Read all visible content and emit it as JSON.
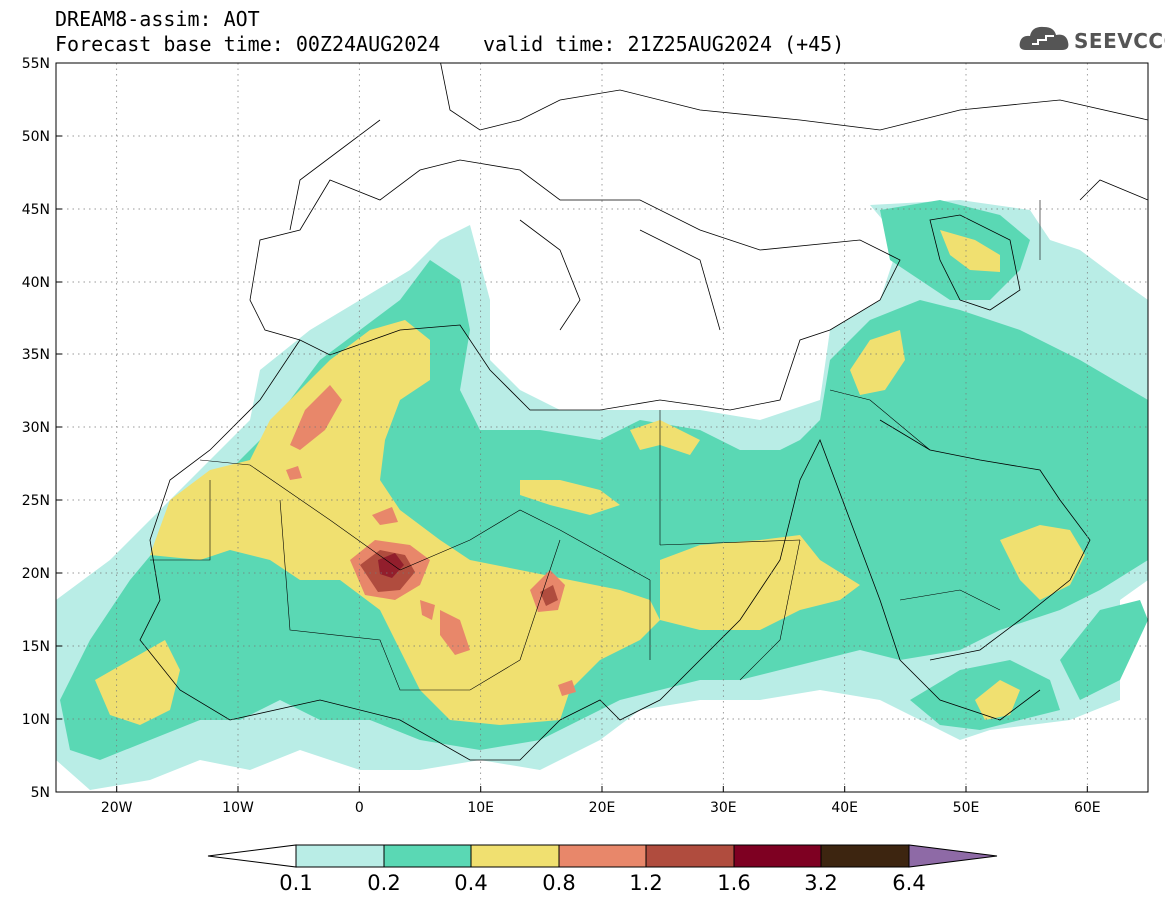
{
  "header": {
    "title": "DREAM8-assim: AOT",
    "base_time": "Forecast base time: 00Z24AUG2024",
    "valid_time": "valid time: 21Z25AUG2024 (+45)"
  },
  "logo": {
    "text": "SEEVCCC",
    "icon": "cloud-icon"
  },
  "map": {
    "lat_labels": [
      "55N",
      "50N",
      "45N",
      "40N",
      "35N",
      "30N",
      "25N",
      "20N",
      "15N",
      "10N",
      "5N"
    ],
    "lon_labels": [
      "20W",
      "10W",
      "0",
      "10E",
      "20E",
      "30E",
      "40E",
      "50E",
      "60E"
    ],
    "lon_range": [
      -25,
      65
    ],
    "lat_range": [
      5,
      55
    ],
    "projection": "equirectangular",
    "grid": "dotted"
  },
  "colorbar": {
    "labels": [
      "0.1",
      "0.2",
      "0.4",
      "0.8",
      "1.2",
      "1.6",
      "3.2",
      "6.4"
    ],
    "colors": [
      "#b9ede6",
      "#5ad8b4",
      "#f0e070",
      "#e8876a",
      "#b04c3e",
      "#7e0022",
      "#3d2510",
      "#8e6aa6"
    ]
  }
}
